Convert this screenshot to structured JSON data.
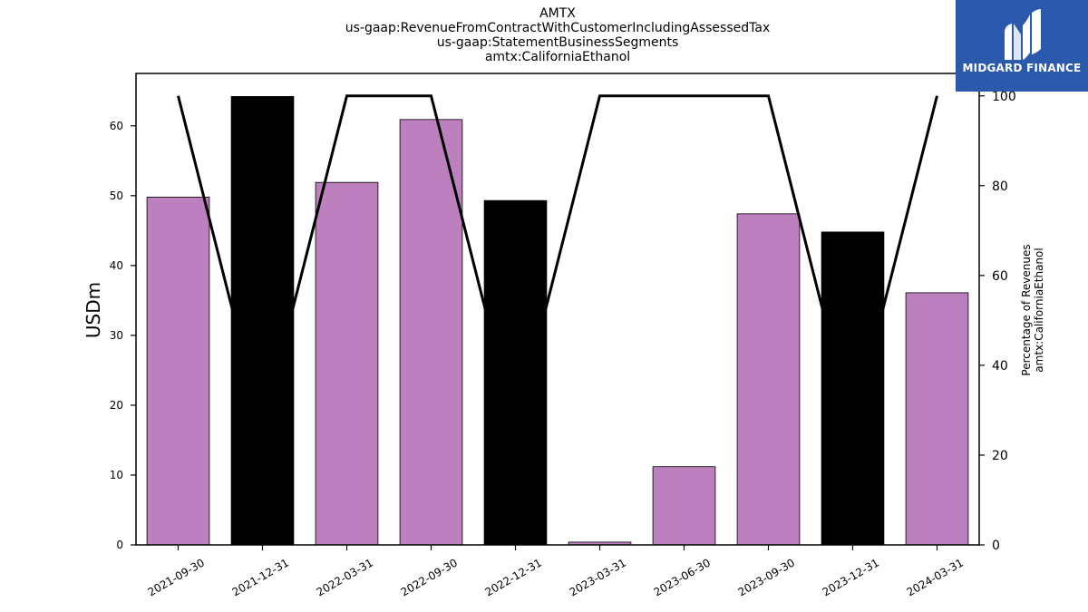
{
  "chart_data": {
    "type": "bar",
    "title_lines": [
      "AMTX",
      "us-gaap:RevenueFromContractWithCustomerIncludingAssessedTax",
      "us-gaap:StatementBusinessSegments",
      "amtx:CaliforniaEthanol"
    ],
    "categories": [
      "2021-09-30",
      "2021-12-31",
      "2022-03-31",
      "2022-09-30",
      "2022-12-31",
      "2023-03-31",
      "2023-06-30",
      "2023-09-30",
      "2023-12-31",
      "2024-03-31"
    ],
    "values": [
      49.8,
      64.2,
      51.9,
      60.9,
      49.3,
      0.4,
      11.2,
      47.4,
      44.8,
      36.1
    ],
    "bar_colors": [
      "#bb80bd",
      "#000000",
      "#bb80bd",
      "#bb80bd",
      "#000000",
      "#bb80bd",
      "#bb80bd",
      "#bb80bd",
      "#000000",
      "#bb80bd"
    ],
    "ylabel": "USDm",
    "ylim": [
      0,
      67.5
    ],
    "yticks": [
      0,
      10,
      20,
      30,
      40,
      50,
      60
    ],
    "secondary_axis": {
      "label_lines": [
        "Percentage of Revenues",
        "amtx:CaliforniaEthanol"
      ],
      "ylim": [
        0,
        105
      ],
      "yticks": [
        0,
        20,
        40,
        60,
        80,
        100
      ],
      "line_values": [
        100,
        26,
        100,
        100,
        26,
        100,
        100,
        100,
        26,
        100
      ],
      "line_color": "#000000"
    },
    "grid": false
  },
  "logo": {
    "text": "MIDGARD FINANCE"
  }
}
